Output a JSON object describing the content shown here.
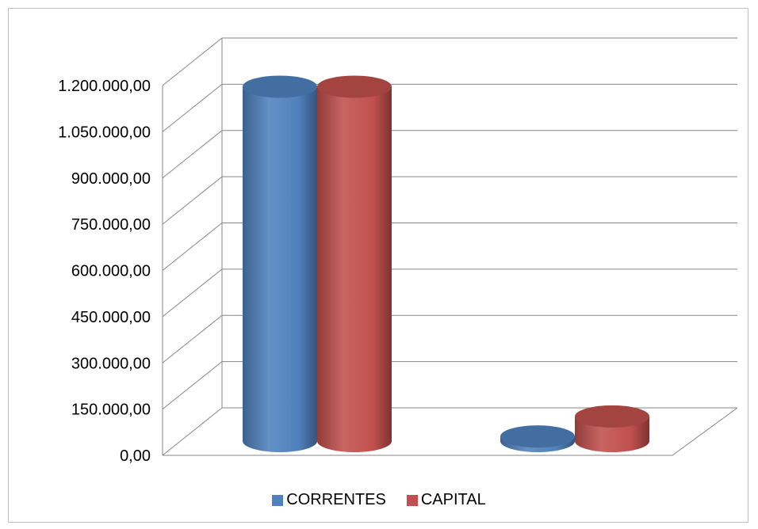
{
  "chart_data": {
    "type": "bar",
    "style": "3d-cylinder",
    "categories": [
      "",
      ""
    ],
    "series": [
      {
        "name": "CORRENTES",
        "color": "#4f81bd",
        "values": [
          1150000,
          15000
        ]
      },
      {
        "name": "CAPITAL",
        "color": "#c0504d",
        "values": [
          1150000,
          80000
        ]
      }
    ],
    "ylim": [
      0,
      1200000
    ],
    "yticks": [
      "0,00",
      "150.000,00",
      "300.000,00",
      "450.000,00",
      "600.000,00",
      "750.000,00",
      "900.000,00",
      "1.050.000,00",
      "1.200.000,00"
    ],
    "grid": true,
    "legend_position": "bottom",
    "title": "",
    "xlabel": "",
    "ylabel": ""
  }
}
